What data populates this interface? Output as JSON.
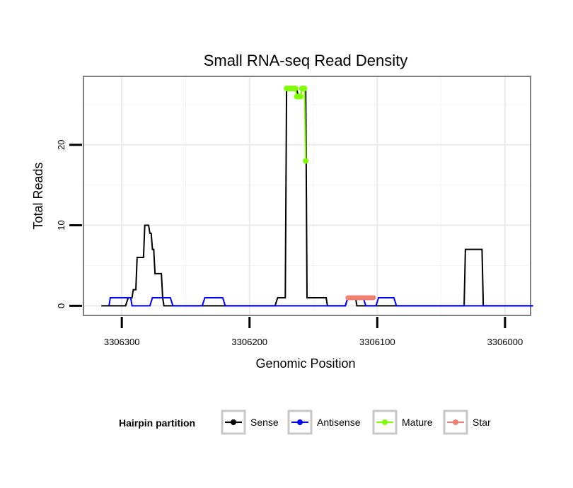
{
  "chart_data": {
    "type": "line",
    "title": "Small RNA-seq Read Density",
    "xlabel": "Genomic Position",
    "ylabel": "Total Reads",
    "x_reversed": true,
    "xlim": [
      3306330,
      3305980
    ],
    "ylim": [
      -1.2,
      28.5
    ],
    "x_ticks": [
      3306300,
      3306200,
      3306100,
      3306000
    ],
    "x_tick_labels": [
      "3306300",
      "3306200",
      "3306100",
      "3306000"
    ],
    "y_ticks": [
      0,
      10,
      20
    ],
    "y_tick_labels": [
      "0",
      "10",
      "20"
    ],
    "grid": true,
    "legend": {
      "title": "Hairpin partition",
      "position": "bottom",
      "entries": [
        {
          "name": "Sense",
          "color": "#000000"
        },
        {
          "name": "Antisense",
          "color": "#0000ff"
        },
        {
          "name": "Mature",
          "color": "#80ff00"
        },
        {
          "name": "Star",
          "color": "#f08070"
        }
      ]
    },
    "series": [
      {
        "name": "Sense",
        "color": "#000000",
        "points": [
          [
            3306316,
            0
          ],
          [
            3306297,
            0
          ],
          [
            3306295,
            1
          ],
          [
            3306292,
            1
          ],
          [
            3306291,
            2
          ],
          [
            3306289,
            2
          ],
          [
            3306288,
            6
          ],
          [
            3306283,
            6
          ],
          [
            3306282,
            10
          ],
          [
            3306279,
            10
          ],
          [
            3306278,
            9
          ],
          [
            3306277,
            9
          ],
          [
            3306276,
            7
          ],
          [
            3306275,
            7
          ],
          [
            3306274,
            4
          ],
          [
            3306269,
            4
          ],
          [
            3306268,
            1
          ],
          [
            3306267,
            0
          ],
          [
            3306180,
            0
          ],
          [
            3306178,
            1
          ],
          [
            3306172,
            1
          ],
          [
            3306171,
            27
          ],
          [
            3306163,
            27
          ],
          [
            3306162,
            26
          ],
          [
            3306160,
            26
          ],
          [
            3306159,
            27
          ],
          [
            3306156,
            27
          ],
          [
            3306155,
            1
          ],
          [
            3306140,
            1
          ],
          [
            3306139,
            0
          ],
          [
            3306125,
            0
          ],
          [
            3306123,
            1
          ],
          [
            3306117,
            1
          ],
          [
            3306116,
            0
          ],
          [
            3306032,
            0
          ],
          [
            3306031,
            7
          ],
          [
            3306018,
            7
          ],
          [
            3306017,
            0
          ],
          [
            3305978,
            0
          ]
        ]
      },
      {
        "name": "Antisense",
        "color": "#0000ff",
        "points": [
          [
            3306310,
            0
          ],
          [
            3306309,
            1
          ],
          [
            3306293,
            1
          ],
          [
            3306292,
            0
          ],
          [
            3306278,
            0
          ],
          [
            3306276,
            1
          ],
          [
            3306262,
            1
          ],
          [
            3306260,
            0
          ],
          [
            3306237,
            0
          ],
          [
            3306235,
            1
          ],
          [
            3306221,
            1
          ],
          [
            3306219,
            0
          ],
          [
            3306125,
            0
          ],
          [
            3306123,
            1
          ],
          [
            3306111,
            1
          ],
          [
            3306109,
            0
          ],
          [
            3306101,
            0
          ],
          [
            3306099,
            1
          ],
          [
            3306087,
            1
          ],
          [
            3306085,
            0
          ],
          [
            3305978,
            0
          ]
        ]
      },
      {
        "name": "Mature",
        "color": "#80ff00",
        "points": [
          [
            3306171,
            27
          ],
          [
            3306170,
            27
          ],
          [
            3306169,
            27
          ],
          [
            3306168,
            27
          ],
          [
            3306167,
            27
          ],
          [
            3306166,
            27
          ],
          [
            3306165,
            27
          ],
          [
            3306164,
            27
          ],
          [
            3306163,
            26
          ],
          [
            3306162,
            26
          ],
          [
            3306161,
            26
          ],
          [
            3306160,
            26
          ],
          [
            3306159,
            27
          ],
          [
            3306158,
            27
          ],
          [
            3306157,
            27
          ],
          [
            3306156,
            18
          ]
        ]
      },
      {
        "name": "Star",
        "color": "#f08070",
        "points": [
          [
            3306123,
            1
          ],
          [
            3306122,
            1
          ],
          [
            3306121,
            1
          ],
          [
            3306120,
            1
          ],
          [
            3306119,
            1
          ],
          [
            3306118,
            1
          ],
          [
            3306117,
            1
          ],
          [
            3306116,
            1
          ],
          [
            3306115,
            1
          ],
          [
            3306114,
            1
          ],
          [
            3306113,
            1
          ],
          [
            3306112,
            1
          ],
          [
            3306111,
            1
          ],
          [
            3306110,
            1
          ],
          [
            3306109,
            1
          ],
          [
            3306108,
            1
          ],
          [
            3306107,
            1
          ],
          [
            3306106,
            1
          ],
          [
            3306105,
            1
          ],
          [
            3306104,
            1
          ],
          [
            3306103,
            1
          ]
        ]
      }
    ]
  }
}
